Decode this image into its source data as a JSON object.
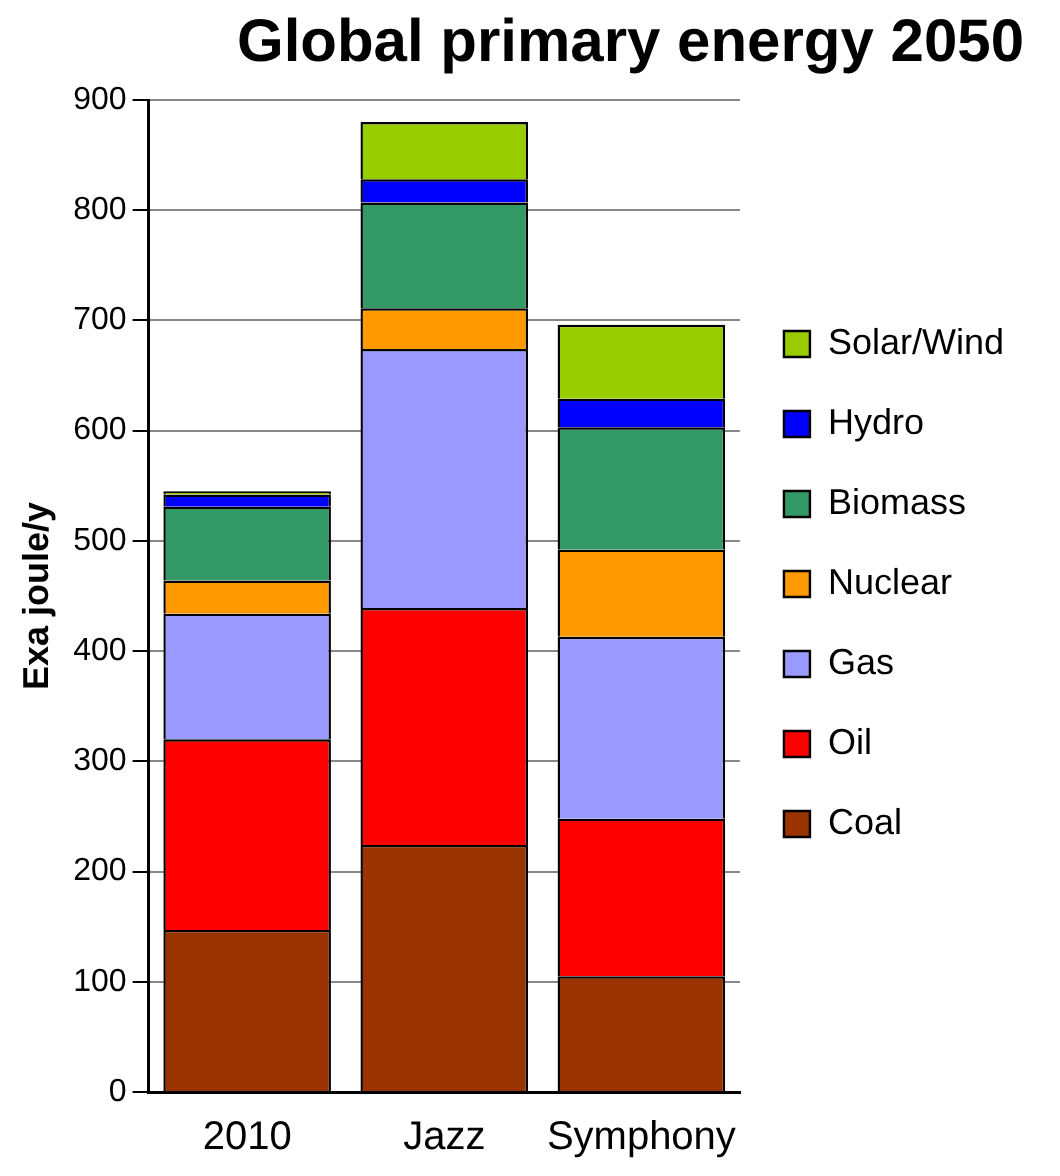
{
  "chart_data": {
    "type": "bar",
    "stacked": true,
    "title": "Global primary energy 2050",
    "ylabel": "Exa joule/y",
    "categories": [
      "2010",
      "Jazz",
      "Symphony"
    ],
    "ylim": [
      0,
      900
    ],
    "yticks": [
      0,
      100,
      200,
      300,
      400,
      500,
      600,
      700,
      800,
      900
    ],
    "grid": "y",
    "legend": "right",
    "series": [
      {
        "name": "Coal",
        "color": "#993300",
        "values": [
          147,
          224,
          105
        ]
      },
      {
        "name": "Oil",
        "color": "#ff0000",
        "values": [
          173,
          215,
          143
        ]
      },
      {
        "name": "Gas",
        "color": "#9999ff",
        "values": [
          114,
          235,
          165
        ]
      },
      {
        "name": "Nuclear",
        "color": "#ff9900",
        "values": [
          30,
          37,
          79
        ]
      },
      {
        "name": "Biomass",
        "color": "#339966",
        "values": [
          67,
          96,
          111
        ]
      },
      {
        "name": "Hydro",
        "color": "#0000ff",
        "values": [
          11,
          21,
          26
        ]
      },
      {
        "name": "Solar/Wind",
        "color": "#99cc00",
        "values": [
          3,
          52,
          67
        ]
      }
    ]
  }
}
